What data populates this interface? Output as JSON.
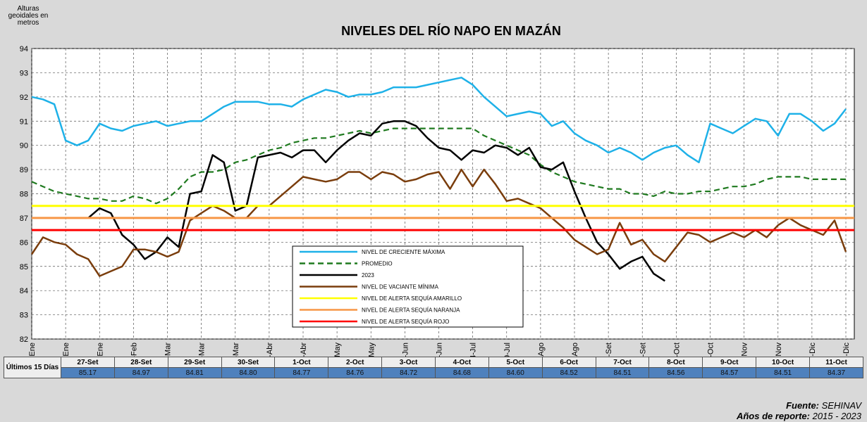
{
  "chart_data": {
    "type": "line",
    "title": "NIVELES  DEL RÍO NAPO EN MAZÁN",
    "y_label": "Alturas geoidales en metros",
    "categories": [
      "1-Ene",
      null,
      null,
      "16-Ene",
      null,
      null,
      "31-Ene",
      null,
      null,
      "15-Feb",
      null,
      null,
      "1-Mar",
      null,
      null,
      "16-Mar",
      null,
      null,
      "31-Mar",
      null,
      null,
      "15-Abr",
      null,
      null,
      "30-Abr",
      null,
      null,
      "15-May",
      null,
      null,
      "30-May",
      null,
      null,
      "14-Jun",
      null,
      null,
      "29-Jun",
      null,
      null,
      "14-Jul",
      null,
      null,
      "29-Jul",
      null,
      null,
      "13-Ago",
      null,
      null,
      "28-Ago",
      null,
      null,
      "12-Set",
      null,
      null,
      "27-Set",
      null,
      null,
      "12-Oct",
      null,
      null,
      "27-Oct",
      null,
      null,
      "11-Nov",
      null,
      null,
      "26-Nov",
      null,
      null,
      "11-Dic",
      null,
      null,
      "26-Dic"
    ],
    "ylim": [
      82,
      94
    ],
    "yticks": [
      82,
      83,
      84,
      85,
      86,
      87,
      88,
      89,
      90,
      91,
      92,
      93,
      94
    ],
    "grid": true,
    "series": [
      {
        "name": "NIVEL DE CRECIENTE MÁXIMA",
        "color": "#1eb1e8",
        "dash": false,
        "values": [
          92.0,
          91.9,
          91.7,
          90.2,
          90.0,
          90.2,
          90.9,
          90.7,
          90.6,
          90.8,
          90.9,
          91.0,
          90.8,
          90.9,
          91.0,
          91.0,
          91.3,
          91.6,
          91.8,
          91.8,
          91.8,
          91.7,
          91.7,
          91.6,
          91.9,
          92.1,
          92.3,
          92.2,
          92.0,
          92.1,
          92.1,
          92.2,
          92.4,
          92.4,
          92.4,
          92.5,
          92.6,
          92.7,
          92.8,
          92.5,
          92.0,
          91.6,
          91.2,
          91.3,
          91.4,
          91.3,
          90.8,
          91.0,
          90.5,
          90.2,
          90.0,
          89.7,
          89.9,
          89.7,
          89.4,
          89.7,
          89.9,
          90.0,
          89.6,
          89.3,
          90.9,
          90.7,
          90.5,
          90.8,
          91.1,
          91.0,
          90.4,
          91.3,
          91.3,
          91.0,
          90.6,
          90.9,
          91.5
        ]
      },
      {
        "name": "PROMEDIO",
        "color": "#1f7a1f",
        "dash": true,
        "values": [
          88.5,
          88.3,
          88.1,
          88.0,
          87.9,
          87.8,
          87.8,
          87.7,
          87.7,
          87.9,
          87.8,
          87.6,
          87.8,
          88.2,
          88.7,
          88.9,
          88.9,
          89.0,
          89.3,
          89.4,
          89.6,
          89.8,
          89.9,
          90.1,
          90.2,
          90.3,
          90.3,
          90.4,
          90.5,
          90.6,
          90.5,
          90.6,
          90.7,
          90.7,
          90.7,
          90.7,
          90.7,
          90.7,
          90.7,
          90.7,
          90.4,
          90.2,
          90.0,
          89.8,
          89.6,
          89.2,
          88.9,
          88.7,
          88.5,
          88.4,
          88.3,
          88.2,
          88.2,
          88.0,
          88.0,
          87.9,
          88.1,
          88.0,
          88.0,
          88.1,
          88.1,
          88.2,
          88.3,
          88.3,
          88.4,
          88.6,
          88.7,
          88.7,
          88.7,
          88.6,
          88.6,
          88.6,
          88.6
        ]
      },
      {
        "name": "2023",
        "color": "#000000",
        "dash": false,
        "values": [
          null,
          null,
          null,
          null,
          null,
          87.0,
          87.4,
          87.2,
          86.3,
          85.9,
          85.3,
          85.6,
          86.2,
          85.8,
          88.0,
          88.1,
          89.6,
          89.3,
          87.3,
          87.5,
          89.5,
          89.6,
          89.7,
          89.5,
          89.8,
          89.8,
          89.3,
          89.8,
          90.2,
          90.5,
          90.4,
          90.9,
          91.0,
          91.0,
          90.8,
          90.3,
          89.9,
          89.8,
          89.4,
          89.8,
          89.7,
          90.0,
          89.9,
          89.6,
          89.9,
          89.1,
          89.0,
          89.3,
          88.1,
          87.0,
          86.0,
          85.5,
          84.9,
          85.2,
          85.4,
          84.7,
          84.4,
          null,
          null,
          null,
          null,
          null,
          null,
          null,
          null,
          null,
          null,
          null,
          null,
          null,
          null,
          null,
          null
        ]
      },
      {
        "name": "NIVEL DE VACIANTE MÍNIMA",
        "color": "#7a3d0c",
        "dash": false,
        "values": [
          85.5,
          86.2,
          86.0,
          85.9,
          85.5,
          85.3,
          84.6,
          84.8,
          85.0,
          85.7,
          85.7,
          85.6,
          85.4,
          85.6,
          86.9,
          87.2,
          87.5,
          87.3,
          87.0,
          87.0,
          87.5,
          87.5,
          87.9,
          88.3,
          88.7,
          88.6,
          88.5,
          88.6,
          88.9,
          88.9,
          88.6,
          88.9,
          88.8,
          88.5,
          88.6,
          88.8,
          88.9,
          88.2,
          89.0,
          88.3,
          89.0,
          88.4,
          87.7,
          87.8,
          87.6,
          87.4,
          87.0,
          86.6,
          86.1,
          85.8,
          85.5,
          85.7,
          86.8,
          85.9,
          86.1,
          85.5,
          85.2,
          85.8,
          86.4,
          86.3,
          86.0,
          86.2,
          86.4,
          86.2,
          86.5,
          86.2,
          86.7,
          87.0,
          86.7,
          86.5,
          86.3,
          86.9,
          85.6
        ]
      }
    ],
    "reference_lines": [
      {
        "name": "NIVEL DE ALERTA SEQUÍA AMARILLO",
        "color": "#ffff00",
        "value": 87.5
      },
      {
        "name": "NIVEL DE ALERTA SEQUÍA NARANJA",
        "color": "#f79646",
        "value": 87.0
      },
      {
        "name": "NIVEL DE ALERTA SEQUÍA ROJO",
        "color": "#ff0000",
        "value": 86.5
      }
    ]
  },
  "table": {
    "label": "Últimos 15 Días",
    "dates": [
      "27-Set",
      "28-Set",
      "29-Set",
      "30-Set",
      "1-Oct",
      "2-Oct",
      "3-Oct",
      "4-Oct",
      "5-Oct",
      "6-Oct",
      "7-Oct",
      "8-Oct",
      "9-Oct",
      "10-Oct",
      "11-Oct"
    ],
    "values": [
      "85.17",
      "84.97",
      "84.81",
      "84.80",
      "84.77",
      "84.76",
      "84.72",
      "84.68",
      "84.60",
      "84.52",
      "84.51",
      "84.56",
      "84.57",
      "84.51",
      "84.37"
    ]
  },
  "footer": {
    "source_label": "Fuente:",
    "source": "SEHINAV",
    "years_label": "Años de reporte:",
    "years": "2015 - 2023"
  }
}
